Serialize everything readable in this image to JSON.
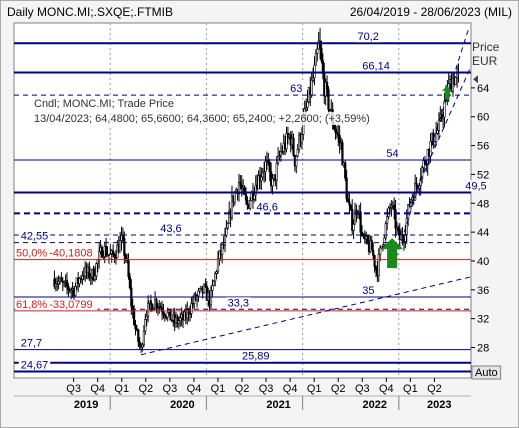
{
  "header": {
    "title": "Daily MONC.MI;.SXQE;.FTMIB",
    "date_range": "26/04/2019 - 28/06/2023 (MIL)"
  },
  "legend": {
    "line1": "Cndl; MONC.MI; Trade Price",
    "line2": "13/04/2023; 64,4800; 65,6600; 64,3600; 65,2400; +2,2600; (+3,59%)"
  },
  "auto_label": "Auto",
  "colors": {
    "level_line": "#000080",
    "fib_line": "#d02020",
    "candle": "#000000",
    "arrow": "#1a8a1a",
    "background": "#ffffff"
  },
  "chart_data": {
    "type": "candlestick",
    "title": "Daily MONC.MI;.SXQE;.FTMIB",
    "date_range": "26/04/2019 - 28/06/2023",
    "y_axis": {
      "label": "Price",
      "unit": "EUR",
      "range": [
        24.67,
        73
      ],
      "ticks": [
        28,
        32,
        36,
        40,
        44,
        48,
        52,
        56,
        60,
        64
      ],
      "position": "right"
    },
    "x_axis": {
      "quarters": [
        {
          "label": "Q3",
          "t": 0.2
        },
        {
          "label": "Q4",
          "t": 0.45
        },
        {
          "label": "Q1",
          "t": 0.7
        },
        {
          "label": "Q2",
          "t": 0.95
        },
        {
          "label": "Q3",
          "t": 1.2
        },
        {
          "label": "Q4",
          "t": 1.45
        },
        {
          "label": "Q1",
          "t": 1.7
        },
        {
          "label": "Q2",
          "t": 1.95
        },
        {
          "label": "Q3",
          "t": 2.2
        },
        {
          "label": "Q4",
          "t": 2.45
        },
        {
          "label": "Q1",
          "t": 2.7
        },
        {
          "label": "Q2",
          "t": 2.95
        },
        {
          "label": "Q3",
          "t": 3.2
        },
        {
          "label": "Q4",
          "t": 3.45
        },
        {
          "label": "Q1",
          "t": 3.7
        },
        {
          "label": "Q2",
          "t": 3.95
        }
      ],
      "years": [
        {
          "label": "2019",
          "t": 0.33
        },
        {
          "label": "2020",
          "t": 1.33
        },
        {
          "label": "2021",
          "t": 2.33
        },
        {
          "label": "2022",
          "t": 3.33
        },
        {
          "label": "2023",
          "t": 4.0
        }
      ],
      "year_separators": [
        0.58,
        1.58,
        2.58,
        3.58
      ]
    },
    "level_lines": [
      {
        "value": 70.2,
        "label": "70,2",
        "style": "thick",
        "label_t": 3.15
      },
      {
        "value": 66.14,
        "label": "66,14",
        "style": "thick",
        "label_t": 3.2
      },
      {
        "value": 63,
        "label": "63",
        "style": "dashed",
        "label_t": 2.45
      },
      {
        "value": 54,
        "label": "54",
        "style": "thin",
        "label_t": 3.45
      },
      {
        "value": 49.5,
        "label": "49,5",
        "style": "thick",
        "label_t": 4.27
      },
      {
        "value": 46.6,
        "label": "46,6",
        "style": "thick-dashed",
        "label_t": 2.1
      },
      {
        "value": 43.6,
        "label": "43,6",
        "style": "dashed",
        "label_t": 1.1
      },
      {
        "value": 42.55,
        "label": "42,55",
        "style": "dashed",
        "label_t": -0.35
      },
      {
        "value": 35,
        "label": "35",
        "style": "thin",
        "label_t": 3.2
      },
      {
        "value": 33.3,
        "label": "33,3",
        "style": "dashed",
        "label_t": 1.8
      },
      {
        "value": 27.7,
        "label": "27,7",
        "style": "thin",
        "label_t": -0.35
      },
      {
        "value": 25.89,
        "label": "25,89",
        "style": "thick",
        "label_t": 1.95
      },
      {
        "value": 24.67,
        "label": "24,67",
        "style": "thick",
        "label_t": -0.35
      }
    ],
    "fib_lines": [
      {
        "value": 40.18,
        "pct_label": "50,0%",
        "value_label": "40,1808"
      },
      {
        "value": 33.08,
        "pct_label": "61,8%",
        "value_label": "33,0799"
      }
    ],
    "trend_lines": [
      {
        "from": [
          0.9,
          27.0
        ],
        "to": [
          4.33,
          37.8
        ],
        "style": "dashed"
      },
      {
        "from": [
          3.55,
          40.4
        ],
        "to": [
          4.3,
          72.0
        ],
        "style": "dashed"
      },
      {
        "from": [
          3.65,
          46.5
        ],
        "to": [
          4.33,
          67.0
        ],
        "style": "dashed"
      }
    ],
    "arrows": [
      {
        "t": 3.51,
        "value": 39.0,
        "direction": "up",
        "size": "large"
      },
      {
        "t": 4.08,
        "value": 62.4,
        "direction": "up",
        "size": "small"
      }
    ],
    "price_path": [
      [
        0,
        37.5
      ],
      [
        0.1,
        36.5
      ],
      [
        0.2,
        36.0
      ],
      [
        0.3,
        38.5
      ],
      [
        0.4,
        38.0
      ],
      [
        0.5,
        41.8
      ],
      [
        0.6,
        40.5
      ],
      [
        0.7,
        42.8
      ],
      [
        0.75,
        40.0
      ],
      [
        0.8,
        34.0
      ],
      [
        0.85,
        30.0
      ],
      [
        0.9,
        27.5
      ],
      [
        0.95,
        33.0
      ],
      [
        1.05,
        34.5
      ],
      [
        1.15,
        33.0
      ],
      [
        1.25,
        31.5
      ],
      [
        1.35,
        32.0
      ],
      [
        1.45,
        34.5
      ],
      [
        1.55,
        36.0
      ],
      [
        1.62,
        34.5
      ],
      [
        1.7,
        40.0
      ],
      [
        1.78,
        43.0
      ],
      [
        1.85,
        48.5
      ],
      [
        1.92,
        51.0
      ],
      [
        2.0,
        47.5
      ],
      [
        2.1,
        51.0
      ],
      [
        2.2,
        53.5
      ],
      [
        2.27,
        50.5
      ],
      [
        2.35,
        55.0
      ],
      [
        2.45,
        57.5
      ],
      [
        2.5,
        54.0
      ],
      [
        2.6,
        60.0
      ],
      [
        2.7,
        66.0
      ],
      [
        2.75,
        70.2
      ],
      [
        2.8,
        64.5
      ],
      [
        2.9,
        59.0
      ],
      [
        2.98,
        56.0
      ],
      [
        3.05,
        48.0
      ],
      [
        3.1,
        45.0
      ],
      [
        3.15,
        48.0
      ],
      [
        3.2,
        43.0
      ],
      [
        3.3,
        41.5
      ],
      [
        3.35,
        38.5
      ],
      [
        3.42,
        43.5
      ],
      [
        3.5,
        48.0
      ],
      [
        3.58,
        43.0
      ],
      [
        3.63,
        43.5
      ],
      [
        3.7,
        48.5
      ],
      [
        3.78,
        51.0
      ],
      [
        3.85,
        54.0
      ],
      [
        3.92,
        56.5
      ],
      [
        4.0,
        58.5
      ],
      [
        4.05,
        61.5
      ],
      [
        4.1,
        64.0
      ],
      [
        4.15,
        65.5
      ],
      [
        4.2,
        65.2
      ]
    ]
  }
}
